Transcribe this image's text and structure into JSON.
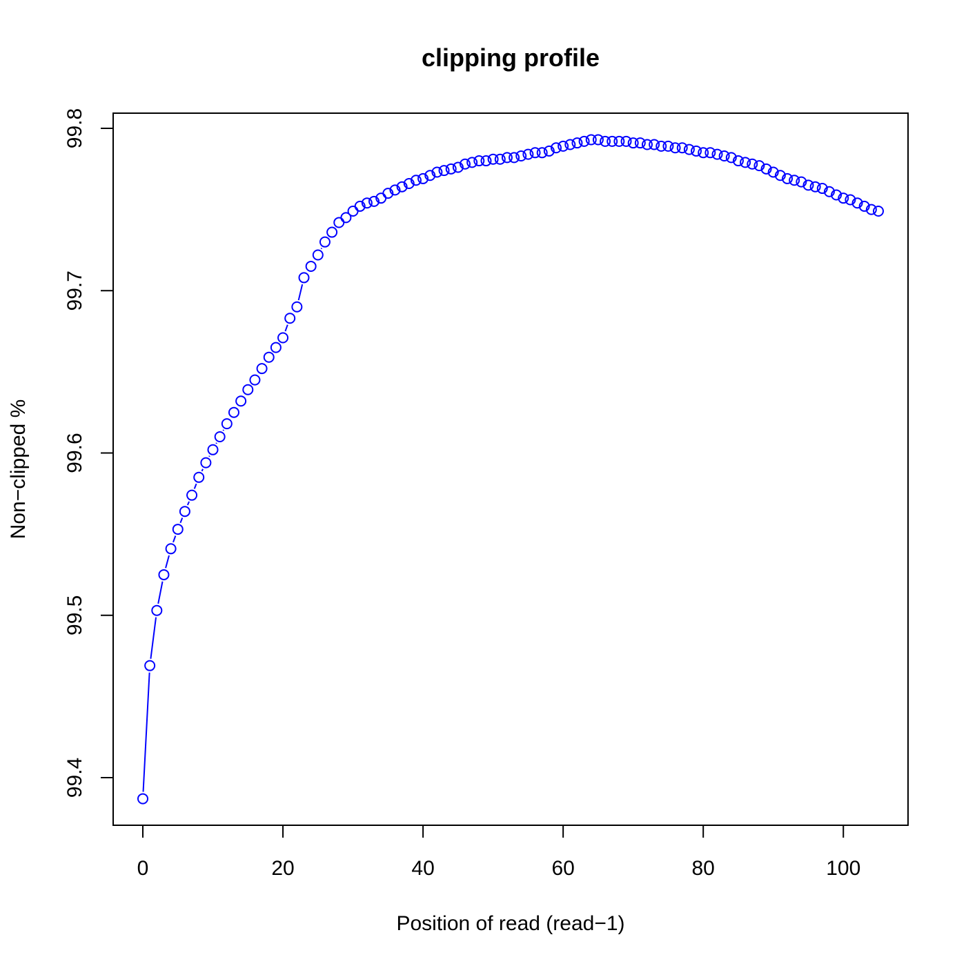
{
  "chart_data": {
    "type": "line",
    "title": "clipping profile",
    "xlabel": "Position of read (read−1)",
    "ylabel": "Non−clipped %",
    "xlim": [
      0,
      105
    ],
    "ylim": [
      99.385,
      99.795
    ],
    "x_ticks": [
      0,
      20,
      40,
      60,
      80,
      100
    ],
    "y_ticks": [
      99.4,
      99.5,
      99.6,
      99.7,
      99.8
    ],
    "x_tick_labels": [
      "0",
      "20",
      "40",
      "60",
      "80",
      "100"
    ],
    "y_tick_labels": [
      "99.4",
      "99.5",
      "99.6",
      "99.7",
      "99.8"
    ],
    "grid": false,
    "series": [
      {
        "color": "#0000ff",
        "marker": "open-circle",
        "x": [
          0,
          1,
          2,
          3,
          4,
          5,
          6,
          7,
          8,
          9,
          10,
          11,
          12,
          13,
          14,
          15,
          16,
          17,
          18,
          19,
          20,
          21,
          22,
          23,
          24,
          25,
          26,
          27,
          28,
          29,
          30,
          31,
          32,
          33,
          34,
          35,
          36,
          37,
          38,
          39,
          40,
          41,
          42,
          43,
          44,
          45,
          46,
          47,
          48,
          49,
          50,
          51,
          52,
          53,
          54,
          55,
          56,
          57,
          58,
          59,
          60,
          61,
          62,
          63,
          64,
          65,
          66,
          67,
          68,
          69,
          70,
          71,
          72,
          73,
          74,
          75,
          76,
          77,
          78,
          79,
          80,
          81,
          82,
          83,
          84,
          85,
          86,
          87,
          88,
          89,
          90,
          91,
          92,
          93,
          94,
          95,
          96,
          97,
          98,
          99,
          100,
          101,
          102,
          103,
          104,
          105
        ],
        "y": [
          99.387,
          99.469,
          99.503,
          99.525,
          99.541,
          99.553,
          99.564,
          99.574,
          99.585,
          99.594,
          99.602,
          99.61,
          99.618,
          99.625,
          99.632,
          99.639,
          99.645,
          99.652,
          99.659,
          99.665,
          99.671,
          99.683,
          99.69,
          99.708,
          99.715,
          99.722,
          99.73,
          99.736,
          99.742,
          99.745,
          99.749,
          99.752,
          99.754,
          99.755,
          99.757,
          99.76,
          99.762,
          99.764,
          99.766,
          99.768,
          99.769,
          99.771,
          99.773,
          99.774,
          99.775,
          99.776,
          99.778,
          99.779,
          99.78,
          99.78,
          99.781,
          99.781,
          99.782,
          99.782,
          99.783,
          99.784,
          99.785,
          99.785,
          99.786,
          99.788,
          99.789,
          99.79,
          99.791,
          99.792,
          99.793,
          99.793,
          99.792,
          99.792,
          99.792,
          99.792,
          99.791,
          99.791,
          99.79,
          99.79,
          99.789,
          99.789,
          99.788,
          99.788,
          99.787,
          99.786,
          99.785,
          99.785,
          99.784,
          99.783,
          99.782,
          99.78,
          99.779,
          99.778,
          99.777,
          99.775,
          99.773,
          99.771,
          99.769,
          99.768,
          99.767,
          99.765,
          99.764,
          99.763,
          99.761,
          99.759,
          99.757,
          99.756,
          99.754,
          99.752,
          99.75,
          99.749
        ]
      }
    ]
  }
}
